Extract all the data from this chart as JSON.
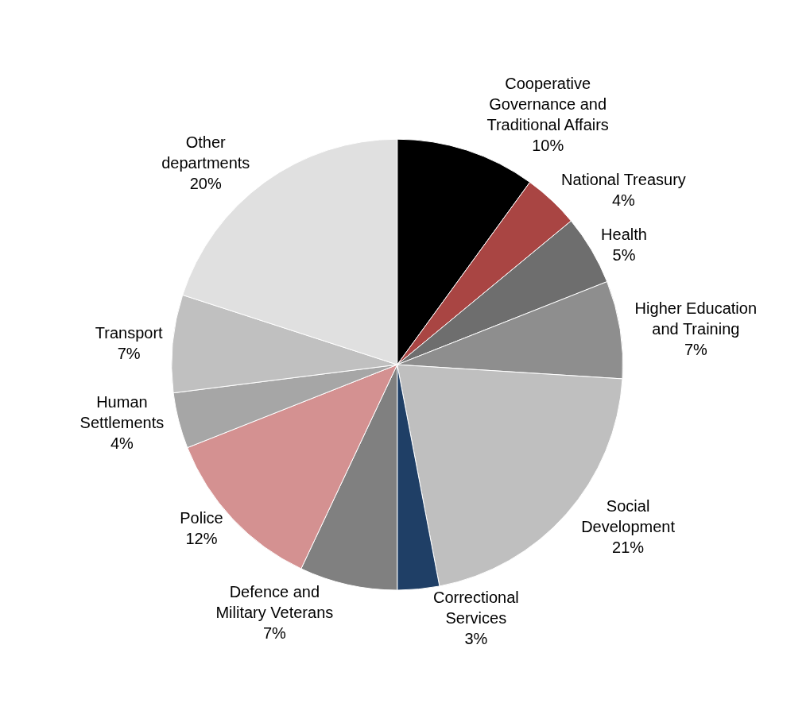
{
  "chart_data": {
    "type": "pie",
    "categories": [
      "Cooperative\nGovernance and\nTraditional Affairs",
      "National Treasury",
      "Health",
      "Higher Education\nand Training",
      "Social\nDevelopment",
      "Correctional\nServices",
      "Defence and\nMilitary Veterans",
      "Police",
      "Human\nSettlements",
      "Transport",
      "Other\ndepartments"
    ],
    "values": [
      10,
      4,
      5,
      7,
      21,
      3,
      7,
      12,
      4,
      7,
      20
    ],
    "value_labels": [
      "10%",
      "4%",
      "5%",
      "7%",
      "21%",
      "3%",
      "7%",
      "12%",
      "4%",
      "7%",
      "20%"
    ],
    "colors": [
      "#000000",
      "#a94543",
      "#6e6e6e",
      "#8e8e8e",
      "#bfbfbf",
      "#1f3f66",
      "#808080",
      "#d49191",
      "#a6a6a6",
      "#c0c0c0",
      "#e0e0e0"
    ],
    "legend": false
  }
}
